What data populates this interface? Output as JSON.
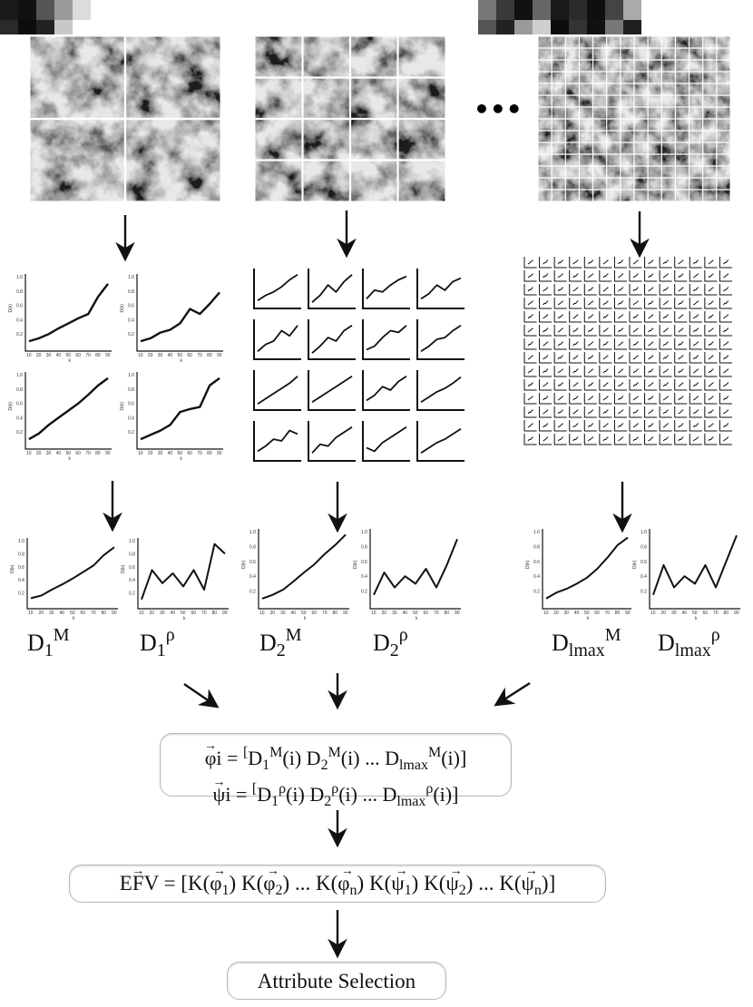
{
  "ellipsis": "•••",
  "mini_chart_text": {
    "y_axis": "D(k)",
    "x_axis": "k",
    "x_ticks": [
      "10",
      "20",
      "30",
      "40",
      "50",
      "60",
      "70",
      "80",
      "90"
    ],
    "y_ticks": [
      "0.2",
      "0.4",
      "0.6",
      "0.8",
      "1.0"
    ]
  },
  "columns": [
    {
      "grid_divisions": 2,
      "label_m_base": "D",
      "label_m_sub": "1",
      "label_m_sup": "M",
      "label_r_base": "D",
      "label_r_sub": "1",
      "label_r_sup": "ρ"
    },
    {
      "grid_divisions": 4,
      "label_m_base": "D",
      "label_m_sub": "2",
      "label_m_sup": "M",
      "label_r_base": "D",
      "label_r_sub": "2",
      "label_r_sup": "ρ"
    },
    {
      "grid_divisions": 14,
      "label_m_base": "D",
      "label_m_sub": "lmax",
      "label_m_sup": "M",
      "label_r_base": "D",
      "label_r_sub": "lmax",
      "label_r_sup": "ρ"
    }
  ],
  "vector_box": {
    "phi_symbol": "φ",
    "phi_index": "i",
    "psi_symbol": "ψ",
    "psi_index": "i",
    "equals": "=",
    "open": "[",
    "close": "]",
    "D": "D",
    "s1": "1",
    "s2": "2",
    "slmax": "lmax",
    "M": "M",
    "rho": "ρ",
    "arg": "(i)",
    "dots": "..."
  },
  "efv_box": {
    "lhs_E": "E",
    "lhs_F": "F",
    "lhs_V": "V",
    "equals": "=",
    "K": "K",
    "phi": "φ",
    "psi": "ψ",
    "i1": "1",
    "i2": "2",
    "in": "n",
    "dots": "..."
  },
  "attribute_box": {
    "label": "Attribute Selection"
  },
  "chart_data": [
    {
      "type": "line",
      "x": [
        10,
        20,
        30,
        40,
        50,
        60,
        70,
        80,
        90
      ],
      "values_D1M": [
        0.1,
        0.14,
        0.2,
        0.28,
        0.35,
        0.42,
        0.48,
        0.72,
        0.9
      ],
      "values_D1rho": [
        0.08,
        0.12,
        0.18,
        0.3,
        0.42,
        0.55,
        0.62,
        0.8,
        0.9
      ],
      "values_D1M_b": [
        0.1,
        0.18,
        0.3,
        0.4,
        0.5,
        0.6,
        0.72,
        0.85,
        0.95
      ],
      "values_D1rho_b": [
        0.1,
        0.16,
        0.22,
        0.3,
        0.48,
        0.52,
        0.55,
        0.85,
        0.95
      ]
    },
    {
      "type": "line",
      "name": "D1M",
      "x": [
        10,
        20,
        30,
        40,
        50,
        60,
        70,
        80,
        90
      ],
      "values": [
        0.12,
        0.16,
        0.25,
        0.33,
        0.42,
        0.52,
        0.62,
        0.78,
        0.9
      ]
    },
    {
      "type": "line",
      "name": "D1rho",
      "x": [
        10,
        20,
        30,
        40,
        50,
        60,
        70,
        80,
        90
      ],
      "values": [
        0.1,
        0.55,
        0.35,
        0.5,
        0.3,
        0.55,
        0.25,
        0.95,
        0.8
      ]
    },
    {
      "type": "line",
      "name": "D2M",
      "x": [
        10,
        20,
        30,
        40,
        50,
        60,
        70,
        80,
        90
      ],
      "values": [
        0.1,
        0.15,
        0.22,
        0.33,
        0.45,
        0.56,
        0.7,
        0.82,
        0.96
      ]
    },
    {
      "type": "line",
      "name": "D2rho",
      "x": [
        10,
        20,
        30,
        40,
        50,
        60,
        70,
        80,
        90
      ],
      "values": [
        0.15,
        0.45,
        0.25,
        0.4,
        0.3,
        0.5,
        0.25,
        0.55,
        0.9
      ]
    },
    {
      "type": "line",
      "name": "DlmaxM",
      "x": [
        10,
        20,
        30,
        40,
        50,
        60,
        70,
        80,
        90
      ],
      "values": [
        0.1,
        0.18,
        0.23,
        0.3,
        0.38,
        0.5,
        0.65,
        0.82,
        0.92
      ]
    },
    {
      "type": "line",
      "name": "Dlmaxrho",
      "x": [
        10,
        20,
        30,
        40,
        50,
        60,
        70,
        80,
        90
      ],
      "values": [
        0.15,
        0.55,
        0.25,
        0.4,
        0.3,
        0.55,
        0.25,
        0.6,
        0.95
      ]
    }
  ]
}
